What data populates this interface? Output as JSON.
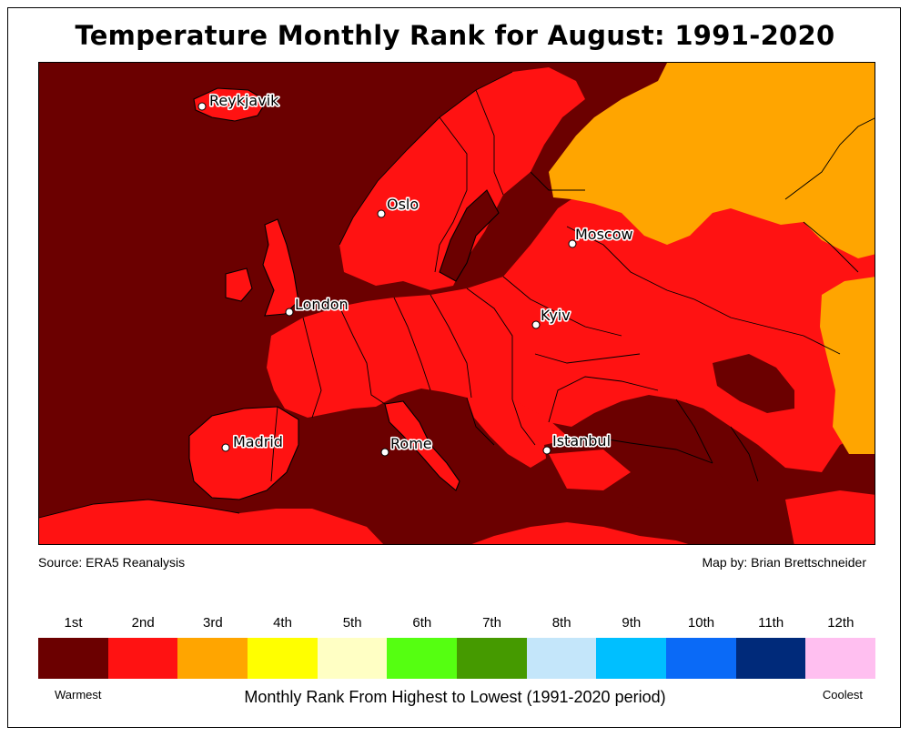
{
  "title": "Temperature Monthly Rank for August: 1991-2020",
  "source": "Source: ERA5 Reanalysis",
  "credit": "Map by: Brian Brettschneider",
  "legend": {
    "ranks": [
      {
        "label": "1st",
        "color": "#6b0000"
      },
      {
        "label": "2nd",
        "color": "#ff1212"
      },
      {
        "label": "3rd",
        "color": "#ffa500"
      },
      {
        "label": "4th",
        "color": "#ffff00"
      },
      {
        "label": "5th",
        "color": "#ffffc4"
      },
      {
        "label": "6th",
        "color": "#55ff11"
      },
      {
        "label": "7th",
        "color": "#459a00"
      },
      {
        "label": "8th",
        "color": "#c4e6fa"
      },
      {
        "label": "9th",
        "color": "#00bfff"
      },
      {
        "label": "10th",
        "color": "#0a6af7"
      },
      {
        "label": "11th",
        "color": "#002a7a"
      },
      {
        "label": "12th",
        "color": "#ffbff0"
      }
    ],
    "warm_label": "Warmest",
    "cool_label": "Coolest",
    "axis_title": "Monthly Rank From Highest to Lowest (1991-2020 period)"
  },
  "cities": [
    {
      "name": "Reykjavik",
      "id": "reykjavik"
    },
    {
      "name": "Oslo",
      "id": "oslo"
    },
    {
      "name": "Moscow",
      "id": "moscow"
    },
    {
      "name": "London",
      "id": "london"
    },
    {
      "name": "Kyiv",
      "id": "kyiv"
    },
    {
      "name": "Madrid",
      "id": "madrid"
    },
    {
      "name": "Rome",
      "id": "rome"
    },
    {
      "name": "Istanbul",
      "id": "istanbul"
    }
  ]
}
